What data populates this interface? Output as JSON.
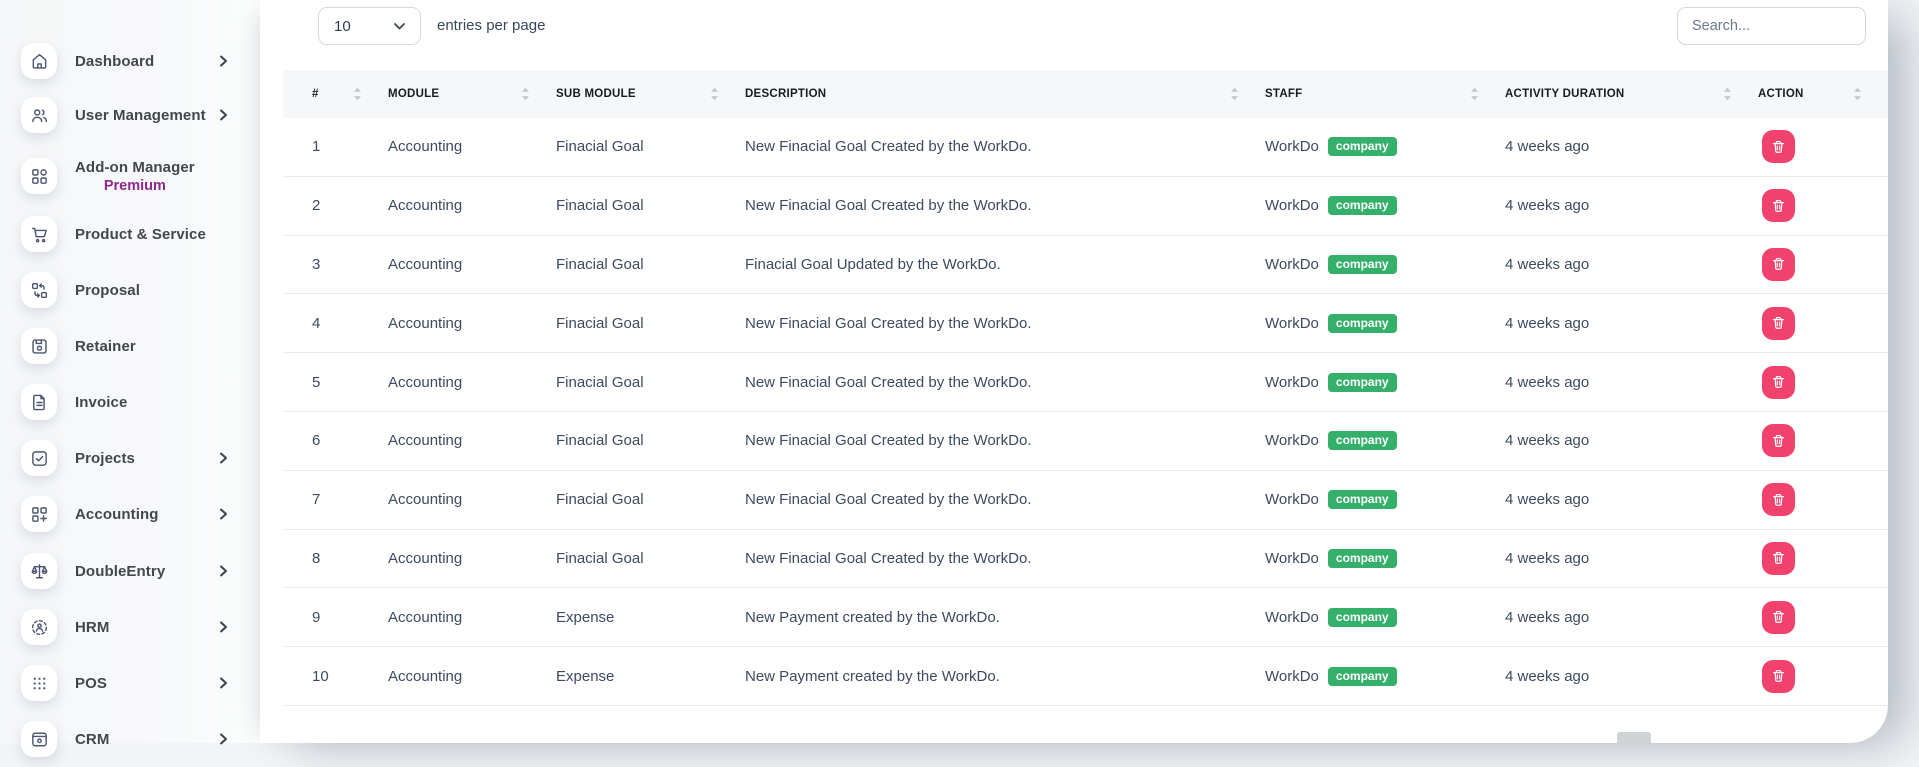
{
  "sidebar": {
    "items": [
      {
        "label": "Dashboard",
        "icon": "home-icon",
        "has_submenu": true
      },
      {
        "label": "User Management",
        "icon": "users-icon",
        "has_submenu": true
      },
      {
        "label": "Add-on Manager",
        "sublabel": "Premium",
        "icon": "addon-grid-icon",
        "has_submenu": false
      },
      {
        "label": "Product & Service",
        "icon": "cart-icon",
        "has_submenu": false
      },
      {
        "label": "Proposal",
        "icon": "swap-boxes-icon",
        "has_submenu": false
      },
      {
        "label": "Retainer",
        "icon": "save-disk-icon",
        "has_submenu": false
      },
      {
        "label": "Invoice",
        "icon": "document-icon",
        "has_submenu": false
      },
      {
        "label": "Projects",
        "icon": "check-square-icon",
        "has_submenu": true
      },
      {
        "label": "Accounting",
        "icon": "grid-plus-icon",
        "has_submenu": true
      },
      {
        "label": "DoubleEntry",
        "icon": "scales-icon",
        "has_submenu": true
      },
      {
        "label": "HRM",
        "icon": "person-dashed-circle-icon",
        "has_submenu": true
      },
      {
        "label": "POS",
        "icon": "dots-grid-icon",
        "has_submenu": true
      },
      {
        "label": "CRM",
        "icon": "crm-window-icon",
        "has_submenu": true
      }
    ]
  },
  "controls": {
    "entries_value": "10",
    "entries_label": "entries per page",
    "search_placeholder": "Search..."
  },
  "table": {
    "columns": [
      "#",
      "MODULE",
      "SUB MODULE",
      "DESCRIPTION",
      "STAFF",
      "ACTIVITY DURATION",
      "ACTION"
    ],
    "rows": [
      {
        "num": "1",
        "module": "Accounting",
        "sub_module": "Finacial Goal",
        "description": "New Finacial Goal Created by the WorkDo.",
        "staff": "WorkDo",
        "staff_badge": "company",
        "activity_duration": "4 weeks ago"
      },
      {
        "num": "2",
        "module": "Accounting",
        "sub_module": "Finacial Goal",
        "description": "New Finacial Goal Created by the WorkDo.",
        "staff": "WorkDo",
        "staff_badge": "company",
        "activity_duration": "4 weeks ago"
      },
      {
        "num": "3",
        "module": "Accounting",
        "sub_module": "Finacial Goal",
        "description": "Finacial Goal Updated by the WorkDo.",
        "staff": "WorkDo",
        "staff_badge": "company",
        "activity_duration": "4 weeks ago"
      },
      {
        "num": "4",
        "module": "Accounting",
        "sub_module": "Finacial Goal",
        "description": "New Finacial Goal Created by the WorkDo.",
        "staff": "WorkDo",
        "staff_badge": "company",
        "activity_duration": "4 weeks ago"
      },
      {
        "num": "5",
        "module": "Accounting",
        "sub_module": "Finacial Goal",
        "description": "New Finacial Goal Created by the WorkDo.",
        "staff": "WorkDo",
        "staff_badge": "company",
        "activity_duration": "4 weeks ago"
      },
      {
        "num": "6",
        "module": "Accounting",
        "sub_module": "Finacial Goal",
        "description": "New Finacial Goal Created by the WorkDo.",
        "staff": "WorkDo",
        "staff_badge": "company",
        "activity_duration": "4 weeks ago"
      },
      {
        "num": "7",
        "module": "Accounting",
        "sub_module": "Finacial Goal",
        "description": "New Finacial Goal Created by the WorkDo.",
        "staff": "WorkDo",
        "staff_badge": "company",
        "activity_duration": "4 weeks ago"
      },
      {
        "num": "8",
        "module": "Accounting",
        "sub_module": "Finacial Goal",
        "description": "New Finacial Goal Created by the WorkDo.",
        "staff": "WorkDo",
        "staff_badge": "company",
        "activity_duration": "4 weeks ago"
      },
      {
        "num": "9",
        "module": "Accounting",
        "sub_module": "Expense",
        "description": "New Payment created by the WorkDo.",
        "staff": "WorkDo",
        "staff_badge": "company",
        "activity_duration": "4 weeks ago"
      },
      {
        "num": "10",
        "module": "Accounting",
        "sub_module": "Expense",
        "description": "New Payment created by the WorkDo.",
        "staff": "WorkDo",
        "staff_badge": "company",
        "activity_duration": "4 weeks ago"
      }
    ]
  },
  "colors": {
    "danger_pink": "#F1426D",
    "badge_green": "#35B06A",
    "premium_purple": "#8F278F"
  }
}
